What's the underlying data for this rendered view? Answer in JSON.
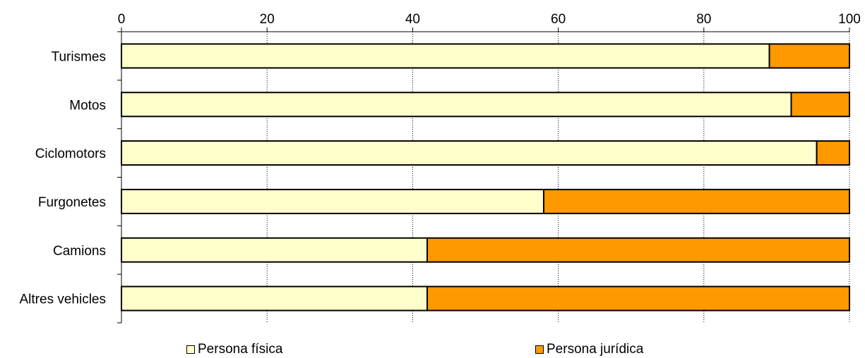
{
  "chart_data": {
    "type": "bar",
    "orientation": "horizontal",
    "stacked": true,
    "categories": [
      "Turismes",
      "Motos",
      "Ciclomotors",
      "Furgonetes",
      "Camions",
      "Altres vehicles"
    ],
    "series": [
      {
        "name": "Persona física",
        "color": "#FFFFCC",
        "values": [
          89,
          92,
          95.5,
          58,
          42,
          42
        ]
      },
      {
        "name": "Persona jurídica",
        "color": "#FF9900",
        "values": [
          11,
          8,
          4.5,
          42,
          58,
          58
        ]
      }
    ],
    "xlim": [
      0,
      100
    ],
    "xticks": [
      0,
      20,
      40,
      60,
      80,
      100
    ],
    "xaxis_position": "top",
    "grid": "vertical dotted",
    "legend_position": "bottom"
  }
}
